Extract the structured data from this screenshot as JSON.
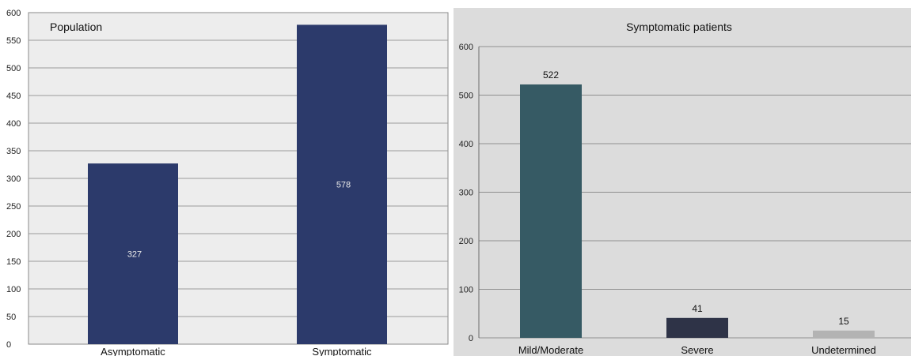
{
  "chart_data": [
    {
      "type": "bar",
      "title": "Population",
      "xlabel": "",
      "ylabel": "",
      "categories": [
        "Asymptomatic",
        "Symptomatic"
      ],
      "values": [
        327,
        578
      ],
      "ylim": [
        0,
        600
      ],
      "yticks": [
        0,
        50,
        100,
        150,
        200,
        250,
        300,
        350,
        400,
        450,
        500,
        550,
        600
      ],
      "grid": true,
      "legend": "none",
      "data_label_position": "inside-center",
      "colors": {
        "bar": "#2c3a6b",
        "background": "#ededed",
        "grid": "#9a9a9a",
        "label": "#e8e8e8"
      }
    },
    {
      "type": "bar",
      "title": "Symptomatic patients",
      "xlabel": "",
      "ylabel": "",
      "categories": [
        "Mild/Moderate",
        "Severe",
        "Undetermined"
      ],
      "values": [
        522,
        41,
        15
      ],
      "ylim": [
        0,
        600
      ],
      "yticks": [
        0,
        100,
        200,
        300,
        400,
        500,
        600
      ],
      "grid": true,
      "legend": "none",
      "data_label_position": "above",
      "colors": {
        "bars": [
          "#365a64",
          "#2e3347",
          "#b3b3b3"
        ],
        "background": "#dcdcdc",
        "grid": "#8f8f8f",
        "label": "#111111"
      }
    }
  ]
}
